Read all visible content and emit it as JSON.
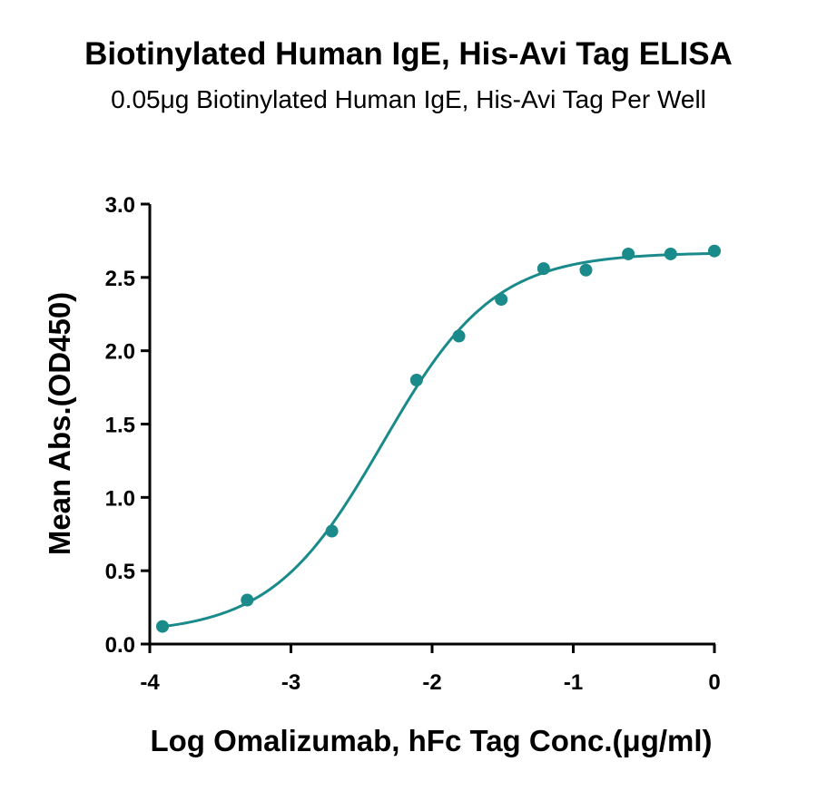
{
  "chart_data": {
    "type": "scatter",
    "title": "Biotinylated Human IgE, His-Avi Tag ELISA",
    "subtitle": "0.05μg Biotinylated Human IgE, His-Avi Tag Per Well",
    "xlabel": "Log Omalizumab, hFc Tag Conc.(μg/ml)",
    "ylabel": "Mean Abs.(OD450)",
    "xlim": [
      -4,
      0
    ],
    "ylim": [
      0,
      3
    ],
    "x_ticks": [
      -4,
      -3,
      -2,
      -1,
      0
    ],
    "x_tick_labels": [
      "-4",
      "-3",
      "-2",
      "-1",
      "0"
    ],
    "y_ticks": [
      0,
      0.5,
      1,
      1.5,
      2,
      2.5,
      3
    ],
    "y_tick_labels": [
      "0.0",
      "0.5",
      "1.0",
      "1.5",
      "2.0",
      "2.5",
      "3.0"
    ],
    "grid": false,
    "color": "#1a8a8a",
    "series": [
      {
        "x": [
          -3.91,
          -3.31,
          -2.71,
          -2.11,
          -1.81,
          -1.51,
          -1.21,
          -0.91,
          -0.61,
          -0.31,
          0.0
        ],
        "y": [
          0.12,
          0.3,
          0.77,
          1.8,
          2.1,
          2.35,
          2.56,
          2.55,
          2.66,
          2.66,
          2.68
        ]
      }
    ],
    "fit_curve": {
      "model": "4PL",
      "bottom": 0.07,
      "top": 2.67,
      "log_ec50": -2.35,
      "hill": 1.1
    }
  }
}
